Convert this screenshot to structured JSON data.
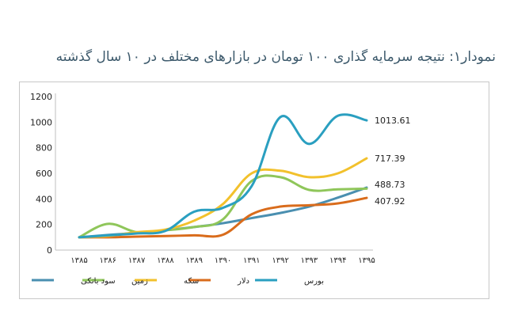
{
  "chart_data": {
    "type": "line",
    "title": "نمودار۱: نتیجه سرمایه گذاری ۱۰۰ تومان در بازارهای مختلف در ۱۰ سال گذشته",
    "xlabel": "",
    "ylabel": "",
    "categories": [
      "۱۳۸۵",
      "۱۳۸۶",
      "۱۳۸۷",
      "۱۳۸۸",
      "۱۳۸۹",
      "۱۳۹۰",
      "۱۳۹۱",
      "۱۳۹۲",
      "۱۳۹۳",
      "۱۳۹۴",
      "۱۳۹۵"
    ],
    "yticks": [
      0,
      200,
      400,
      600,
      800,
      1000,
      1200
    ],
    "ylim": [
      0,
      1200
    ],
    "grid": false,
    "legend": "bottom",
    "series": [
      {
        "name": "بورس",
        "color": "#2a9fc0",
        "values": [
          100,
          115,
          130,
          150,
          300,
          330,
          500,
          1040,
          830,
          1050,
          1013.61
        ],
        "end_label": "1013.61"
      },
      {
        "name": "دلار",
        "color": "#d96c1c",
        "values": [
          100,
          100,
          105,
          110,
          115,
          120,
          280,
          340,
          350,
          365,
          407.92
        ],
        "end_label": "407.92"
      },
      {
        "name": "سکه",
        "color": "#f2c12c",
        "values": [
          100,
          110,
          140,
          160,
          230,
          360,
          600,
          620,
          570,
          600,
          717.39
        ],
        "end_label": "717.39"
      },
      {
        "name": "زمین",
        "color": "#8fc65a",
        "values": [
          100,
          205,
          140,
          155,
          180,
          240,
          540,
          570,
          470,
          475,
          480
        ],
        "end_label": ""
      },
      {
        "name": "سود بانکی",
        "color": "#4a8fb0",
        "values": [
          100,
          118,
          135,
          155,
          180,
          210,
          250,
          290,
          340,
          410,
          488.73
        ],
        "end_label": "488.73"
      }
    ]
  }
}
